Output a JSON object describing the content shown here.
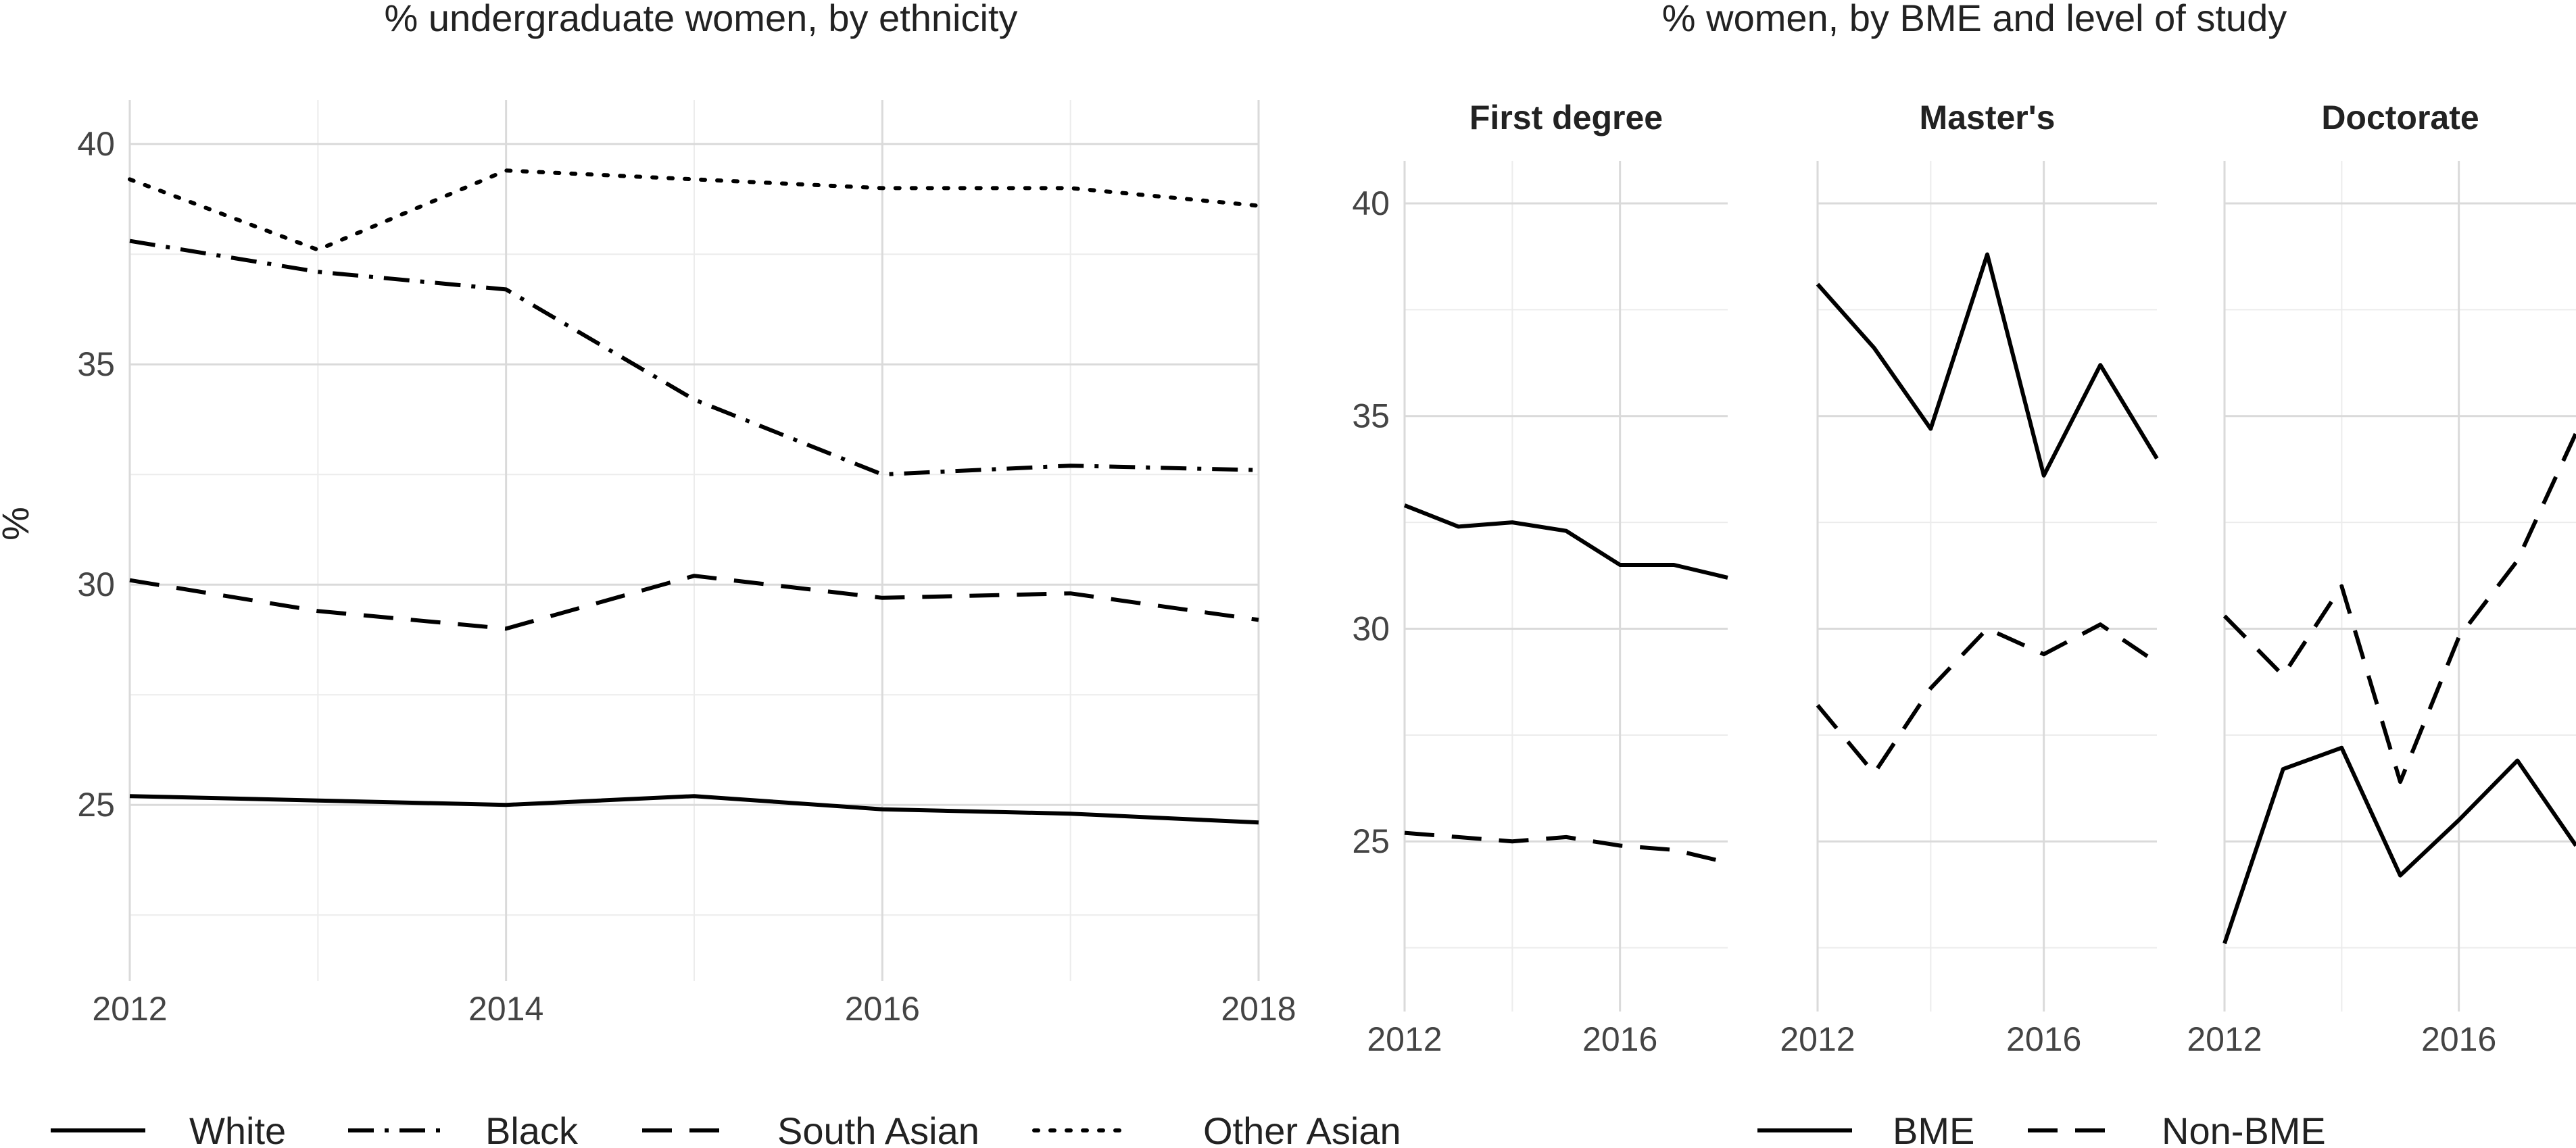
{
  "chart_data": [
    {
      "type": "line",
      "title": "% undergraduate women, by ethnicity",
      "ylabel": "%",
      "xlabel": "",
      "xlim": [
        2012,
        2018
      ],
      "ylim": [
        21,
        41
      ],
      "x_ticks": [
        "2012",
        "2014",
        "2016",
        "2018"
      ],
      "y_ticks": [
        "25",
        "30",
        "35",
        "40"
      ],
      "grid": true,
      "legend_position": "bottom",
      "x": [
        2012,
        2013,
        2014,
        2015,
        2016,
        2017,
        2018
      ],
      "series": [
        {
          "name": "White",
          "dash": "solid",
          "values": [
            25.2,
            25.1,
            25.0,
            25.2,
            24.9,
            24.8,
            24.6
          ]
        },
        {
          "name": "Black",
          "dash": "dotdash",
          "values": [
            37.8,
            37.1,
            36.7,
            34.2,
            32.5,
            32.7,
            32.6
          ]
        },
        {
          "name": "South Asian",
          "dash": "dashed",
          "values": [
            30.1,
            29.4,
            29.0,
            30.2,
            29.7,
            29.8,
            29.2
          ]
        },
        {
          "name": "Other Asian",
          "dash": "dotted",
          "values": [
            39.2,
            37.6,
            39.4,
            39.2,
            39.0,
            39.0,
            38.6
          ]
        }
      ]
    },
    {
      "type": "line",
      "title": "% women, by BME and level of study",
      "xlabel": "",
      "ylabel": "",
      "xlim": [
        2012,
        2018
      ],
      "ylim": [
        21,
        41
      ],
      "y_ticks": [
        "25",
        "30",
        "35",
        "40"
      ],
      "grid": true,
      "legend_position": "bottom",
      "x": [
        2012,
        2013,
        2014,
        2015,
        2016,
        2017,
        2018
      ],
      "facets": [
        {
          "label": "First degree",
          "x_ticks": [
            "2012",
            "2016"
          ],
          "series": [
            {
              "name": "BME",
              "dash": "solid",
              "values": [
                32.9,
                32.4,
                32.5,
                32.3,
                31.5,
                31.5,
                31.2
              ]
            },
            {
              "name": "Non-BME",
              "dash": "dashed",
              "values": [
                25.2,
                25.1,
                25.0,
                25.1,
                24.9,
                24.8,
                24.5
              ]
            }
          ]
        },
        {
          "label": "Master's",
          "x_ticks": [
            "2012",
            "2016"
          ],
          "series": [
            {
              "name": "BME",
              "dash": "solid",
              "values": [
                38.1,
                36.6,
                34.7,
                38.8,
                33.6,
                36.2,
                34.0
              ]
            },
            {
              "name": "Non-BME",
              "dash": "dashed",
              "values": [
                28.2,
                26.6,
                28.6,
                30.0,
                29.4,
                30.1,
                29.2
              ]
            }
          ]
        },
        {
          "label": "Doctorate",
          "x_ticks": [
            "2012",
            "2016"
          ],
          "series": [
            {
              "name": "BME",
              "dash": "solid",
              "values": [
                22.6,
                26.7,
                27.2,
                24.2,
                25.5,
                26.9,
                24.9
              ]
            },
            {
              "name": "Non-BME",
              "dash": "dashed",
              "values": [
                30.3,
                28.9,
                31.0,
                26.4,
                29.8,
                31.6,
                34.6
              ]
            }
          ]
        }
      ]
    }
  ],
  "legends": {
    "ethnicity": [
      "White",
      "Black",
      "South Asian",
      "Other Asian"
    ],
    "bme": [
      "BME",
      "Non-BME"
    ]
  }
}
